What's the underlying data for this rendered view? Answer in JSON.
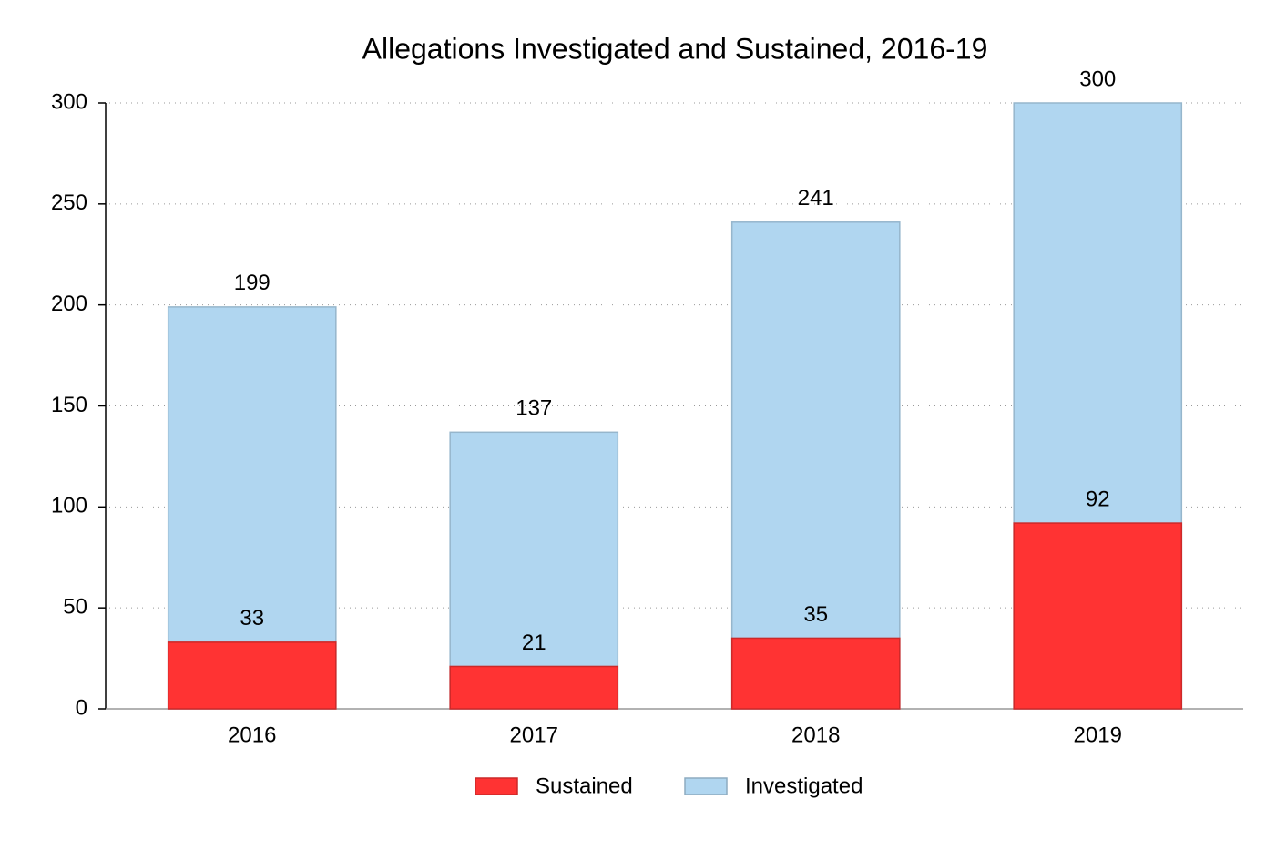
{
  "chart_data": {
    "type": "bar",
    "title": "Allegations Investigated and Sustained, 2016-19",
    "categories": [
      "2016",
      "2017",
      "2018",
      "2019"
    ],
    "series": [
      {
        "name": "Sustained",
        "color": "#ff3333",
        "values": [
          33,
          21,
          35,
          92
        ]
      },
      {
        "name": "Investigated",
        "color": "#b0d6f0",
        "values": [
          199,
          137,
          241,
          300
        ]
      }
    ],
    "ylim": [
      0,
      300
    ],
    "yticks": [
      0,
      50,
      100,
      150,
      200,
      250,
      300
    ],
    "grid": true,
    "legend": "bottom"
  }
}
